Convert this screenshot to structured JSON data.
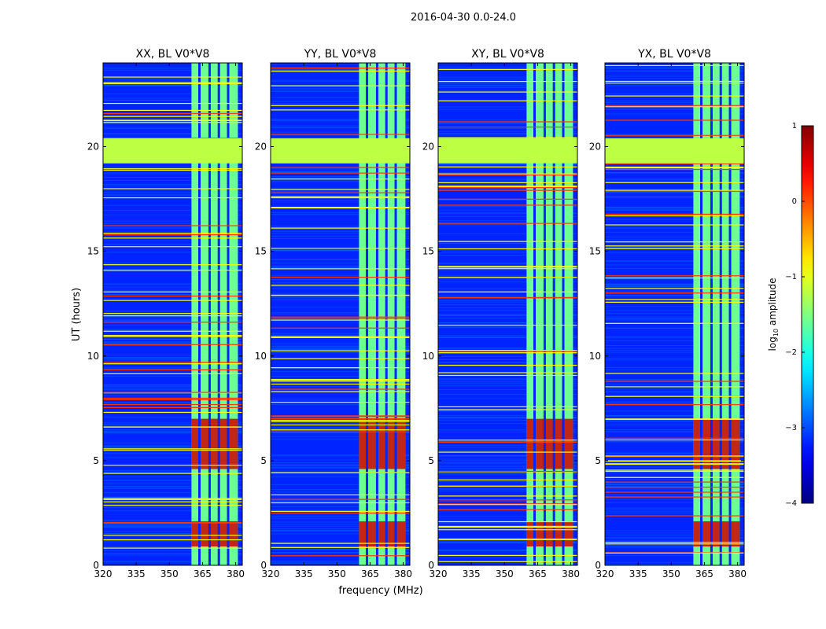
{
  "suptitle": "2016-04-30 0.0-24.0",
  "chart_data": {
    "type": "heatmap",
    "panels": [
      {
        "title": "XX, BL V0*V8",
        "polarization": "XX"
      },
      {
        "title": "YY, BL V0*V8",
        "polarization": "YY"
      },
      {
        "title": "XY, BL V0*V8",
        "polarization": "XY"
      },
      {
        "title": "YX, BL V0*V8",
        "polarization": "YX"
      }
    ],
    "xlabel": "frequency (MHz)",
    "ylabel": "UT (hours)",
    "xticks": [
      "320",
      "335",
      "350",
      "365",
      "380"
    ],
    "xtick_values": [
      320,
      335,
      350,
      365,
      380
    ],
    "yticks": [
      "0",
      "5",
      "10",
      "15",
      "20"
    ],
    "ytick_values": [
      0,
      5,
      10,
      15,
      20
    ],
    "xlim": [
      320,
      383
    ],
    "ylim": [
      0,
      24
    ],
    "colorbar": {
      "label_prefix": "log",
      "label_sub": "10",
      "label_suffix": " amplitude",
      "ticks": [
        "1",
        "0",
        "−1",
        "−2",
        "−3",
        "−4"
      ],
      "tick_values": [
        1,
        0,
        -1,
        -2,
        -3,
        -4
      ],
      "range": [
        -4,
        1
      ],
      "colormap": "jet"
    },
    "features": {
      "band_mhz": [
        360,
        381
      ],
      "channel_gaps_mhz": [
        363.6,
        368.2,
        372.4,
        376.6
      ],
      "flagged_rows_ut": [
        [
          19.2,
          20.4
        ]
      ],
      "strong_emission_ut": [
        [
          0.9,
          2.1
        ],
        [
          4.6,
          7.0
        ]
      ],
      "levels": {
        "background": -3.2,
        "band": -1.6,
        "flagged": -1.2,
        "strong": 0.6
      }
    }
  },
  "colors": {
    "axes": "#000000",
    "background": "#ffffff"
  }
}
